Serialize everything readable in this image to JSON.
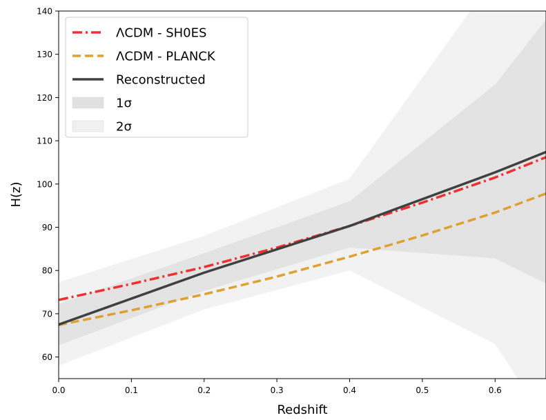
{
  "chart_data": {
    "type": "line",
    "title": "",
    "xlabel": "Redshift",
    "ylabel": "H(z)",
    "xlim": [
      0.0,
      0.67
    ],
    "ylim": [
      55,
      140
    ],
    "xticks": [
      "0.0",
      "0.1",
      "0.2",
      "0.3",
      "0.4",
      "0.5",
      "0.6"
    ],
    "xtick_values": [
      0.0,
      0.1,
      0.2,
      0.3,
      0.4,
      0.5,
      0.6
    ],
    "yticks": [
      "60",
      "70",
      "80",
      "90",
      "100",
      "110",
      "120",
      "130",
      "140"
    ],
    "ytick_values": [
      60,
      70,
      80,
      90,
      100,
      110,
      120,
      130,
      140
    ],
    "grid": false,
    "legend_position": "top-left",
    "series": [
      {
        "name": "ΛCDM - SH0ES",
        "style": "dashdot",
        "color": "#f03030",
        "x": [
          0.0,
          0.1,
          0.2,
          0.3,
          0.4,
          0.5,
          0.6,
          0.67
        ],
        "y": [
          73.2,
          76.9,
          80.8,
          85.3,
          90.3,
          95.7,
          101.5,
          106.2
        ]
      },
      {
        "name": "ΛCDM - PLANCK",
        "style": "dashed",
        "color": "#e0a030",
        "x": [
          0.0,
          0.1,
          0.2,
          0.3,
          0.4,
          0.5,
          0.6,
          0.67
        ],
        "y": [
          67.4,
          70.8,
          74.5,
          78.6,
          83.2,
          88.1,
          93.4,
          97.8
        ]
      },
      {
        "name": "Reconstructed",
        "style": "solid",
        "color": "#404040",
        "x": [
          0.0,
          0.2,
          0.4,
          0.6,
          0.67
        ],
        "y": [
          67.5,
          79.5,
          90.3,
          102.7,
          107.4
        ]
      }
    ],
    "bands": [
      {
        "name": "2σ",
        "color": "#f0f0f0",
        "x": [
          0.0,
          0.2,
          0.4,
          0.6,
          0.67
        ],
        "lower": [
          58.0,
          71.0,
          80.0,
          63.0,
          45.0
        ],
        "upper": [
          77.3,
          88.0,
          101.2,
          148.0,
          165.0
        ]
      },
      {
        "name": "1σ",
        "color": "#e0e0e0",
        "x": [
          0.0,
          0.2,
          0.4,
          0.6,
          0.67
        ],
        "lower": [
          62.7,
          75.3,
          85.3,
          82.8,
          77.0
        ],
        "upper": [
          72.3,
          84.0,
          96.0,
          123.0,
          138.0
        ]
      }
    ],
    "legend": [
      {
        "label": "ΛCDM - SH0ES",
        "kind": "dashdot",
        "color": "#f03030"
      },
      {
        "label": "ΛCDM - PLANCK",
        "kind": "dashed",
        "color": "#e0a030"
      },
      {
        "label": "Reconstructed",
        "kind": "solid",
        "color": "#404040"
      },
      {
        "label": "1σ",
        "kind": "patch",
        "color": "#e0e0e0"
      },
      {
        "label": "2σ",
        "kind": "patch",
        "color": "#f0f0f0"
      }
    ]
  }
}
